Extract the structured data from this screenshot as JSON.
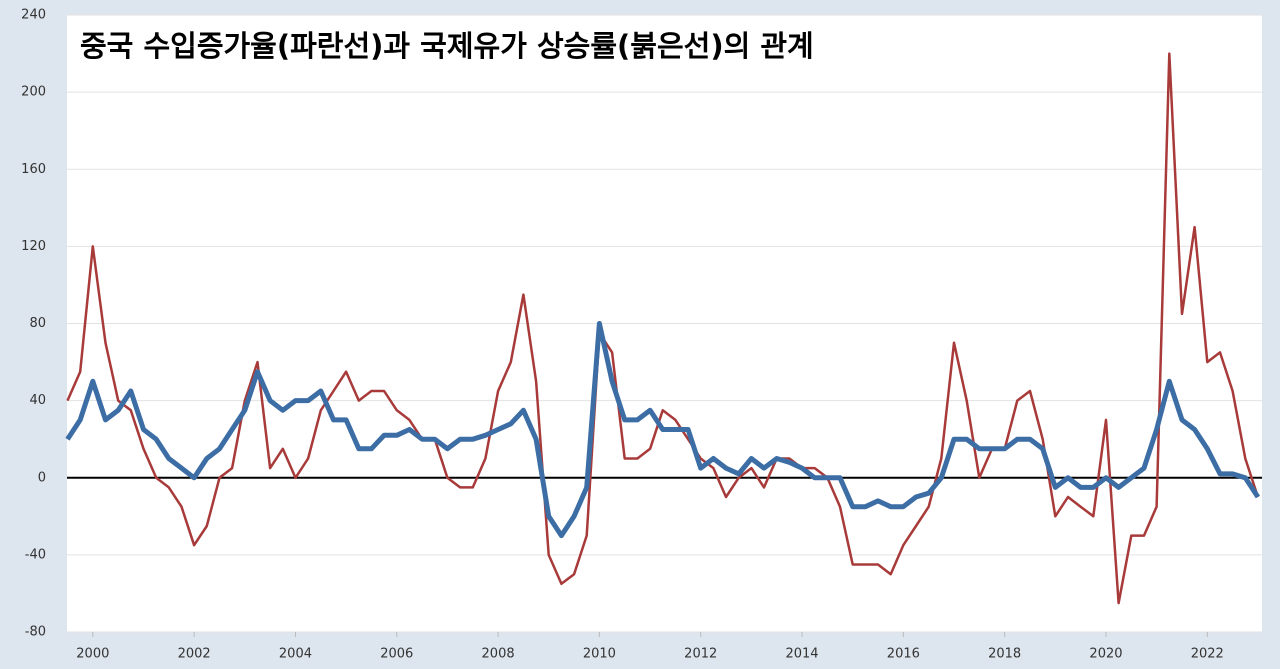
{
  "chart_data": {
    "type": "line",
    "title": "중국 수입증가율(파란선)과 국제유가 상승률(붉은선)의 관계",
    "x": [
      1999.5,
      1999.75,
      2000,
      2000.25,
      2000.5,
      2000.75,
      2001,
      2001.25,
      2001.5,
      2001.75,
      2002,
      2002.25,
      2002.5,
      2002.75,
      2003,
      2003.25,
      2003.5,
      2003.75,
      2004,
      2004.25,
      2004.5,
      2004.75,
      2005,
      2005.25,
      2005.5,
      2005.75,
      2006,
      2006.25,
      2006.5,
      2006.75,
      2007,
      2007.25,
      2007.5,
      2007.75,
      2008,
      2008.25,
      2008.5,
      2008.75,
      2009,
      2009.25,
      2009.5,
      2009.75,
      2010,
      2010.25,
      2010.5,
      2010.75,
      2011,
      2011.25,
      2011.5,
      2011.75,
      2012,
      2012.25,
      2012.5,
      2012.75,
      2013,
      2013.25,
      2013.5,
      2013.75,
      2014,
      2014.25,
      2014.5,
      2014.75,
      2015,
      2015.25,
      2015.5,
      2015.75,
      2016,
      2016.25,
      2016.5,
      2016.75,
      2017,
      2017.25,
      2017.5,
      2017.75,
      2018,
      2018.25,
      2018.5,
      2018.75,
      2019,
      2019.25,
      2019.5,
      2019.75,
      2020,
      2020.25,
      2020.5,
      2020.75,
      2021,
      2021.25,
      2021.5,
      2021.75,
      2022,
      2022.25,
      2022.5,
      2022.75,
      2023
    ],
    "series": [
      {
        "color": "#a83a3a",
        "width": 2.5,
        "values": [
          40,
          55,
          120,
          70,
          40,
          35,
          15,
          0,
          -5,
          -15,
          -35,
          -25,
          0,
          5,
          40,
          60,
          5,
          15,
          0,
          10,
          35,
          45,
          55,
          40,
          45,
          45,
          35,
          30,
          20,
          20,
          0,
          -5,
          -5,
          10,
          45,
          60,
          95,
          50,
          -40,
          -55,
          -50,
          -30,
          75,
          65,
          10,
          10,
          15,
          35,
          30,
          20,
          10,
          5,
          -10,
          0,
          5,
          -5,
          10,
          10,
          5,
          5,
          0,
          -15,
          -45,
          -45,
          -45,
          -50,
          -35,
          -25,
          -15,
          10,
          70,
          40,
          0,
          15,
          15,
          40,
          45,
          20,
          -20,
          -10,
          -15,
          -20,
          30,
          -65,
          -30,
          -30,
          -15,
          220,
          85,
          130,
          60,
          65,
          45,
          10,
          -10
        ]
      },
      {
        "color": "#3c6ea5",
        "width": 5,
        "values": [
          20,
          30,
          50,
          30,
          35,
          45,
          25,
          20,
          10,
          5,
          0,
          10,
          15,
          25,
          35,
          55,
          40,
          35,
          40,
          40,
          45,
          30,
          30,
          15,
          15,
          22,
          22,
          25,
          20,
          20,
          15,
          20,
          20,
          22,
          25,
          28,
          35,
          20,
          -20,
          -30,
          -20,
          -5,
          80,
          50,
          30,
          30,
          35,
          25,
          25,
          25,
          5,
          10,
          5,
          2,
          10,
          5,
          10,
          8,
          5,
          0,
          0,
          0,
          -15,
          -15,
          -12,
          -15,
          -15,
          -10,
          -8,
          0,
          20,
          20,
          15,
          15,
          15,
          20,
          20,
          15,
          -5,
          0,
          -5,
          -5,
          0,
          -5,
          0,
          5,
          25,
          50,
          30,
          25,
          15,
          2,
          2,
          0,
          -10
        ]
      }
    ],
    "xlim": [
      1999.49,
      2023.08
    ],
    "xticks": [
      2000,
      2002,
      2004,
      2006,
      2008,
      2010,
      2012,
      2014,
      2016,
      2018,
      2020,
      2022
    ],
    "ylim": [
      -80,
      240
    ],
    "yticks": [
      -80,
      -40,
      0,
      40,
      80,
      120,
      160,
      200,
      240
    ],
    "grid": true
  }
}
